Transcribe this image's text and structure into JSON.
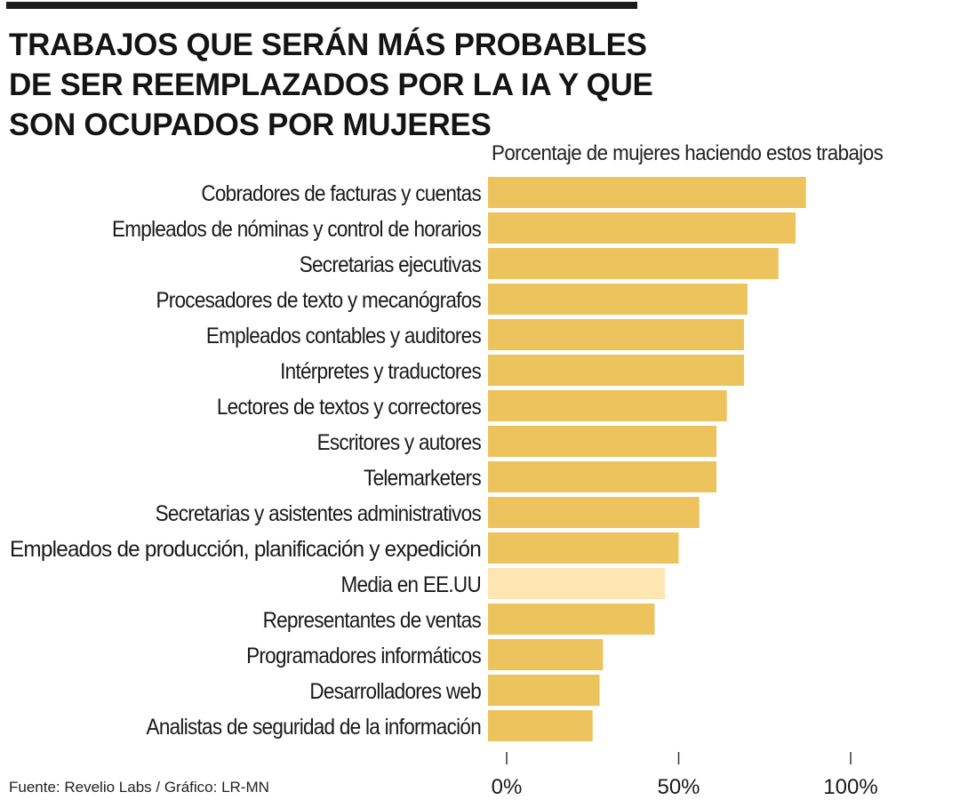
{
  "title_lines": [
    "TRABAJOS QUE SERÁN MÁS PROBABLES",
    "DE SER REEMPLAZADOS POR LA IA Y QUE",
    "SON OCUPADOS POR MUJERES"
  ],
  "source": "Fuente: Revelio Labs / Gráfico: LR-MN",
  "colors": {
    "bar": "#ecc35c",
    "highlight": "#fde6b2",
    "text": "#1a1a1a"
  },
  "chart_data": {
    "type": "bar",
    "orientation": "horizontal",
    "title": "TRABAJOS QUE SERÁN MÁS PROBABLES DE SER REEMPLAZADOS POR LA IA Y QUE SON OCUPADOS POR MUJERES",
    "xlabel": "Porcentaje de mujeres haciendo estos trabajos",
    "ylabel": "",
    "xlim": [
      0,
      100
    ],
    "x_ticks": [
      0,
      50,
      100
    ],
    "x_tick_labels": [
      "0%",
      "50%",
      "100%"
    ],
    "grid": false,
    "categories": [
      "Cobradores de facturas y cuentas",
      "Empleados de nóminas y control de horarios",
      "Secretarias ejecutivas",
      "Procesadores de texto y mecanógrafos",
      "Empleados contables y auditores",
      "Intérpretes y traductores",
      "Lectores de textos y correctores",
      "Escritores y autores",
      "Telemarketers",
      "Secretarias y asistentes administrativos",
      "Empleados de producción, planificación y expedición",
      "Media en EE.UU",
      "Representantes de ventas",
      "Programadores informáticos",
      "Desarrolladores web",
      "Analistas de seguridad de la información"
    ],
    "values": [
      87,
      84,
      79,
      70,
      69,
      69,
      64,
      61,
      61,
      56,
      50,
      46,
      43,
      28,
      27,
      25
    ],
    "highlighted_category": "Media en EE.UU"
  }
}
